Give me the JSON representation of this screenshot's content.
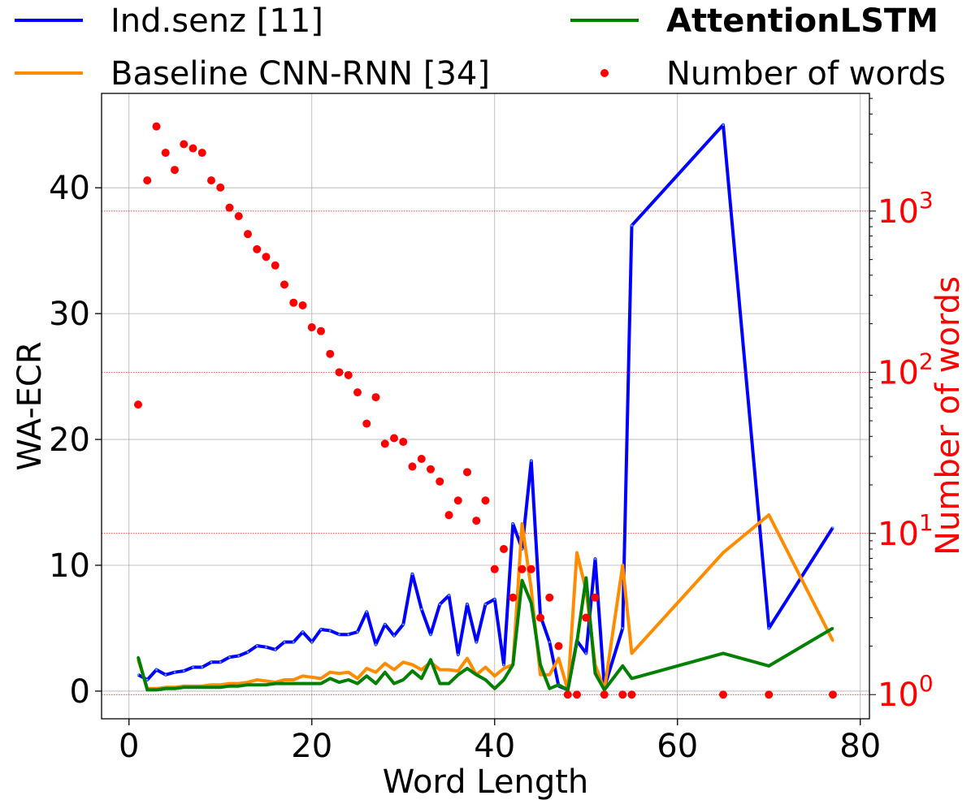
{
  "chart_data": {
    "type": "line",
    "xlabel": "Word Length",
    "ylabel": "WA-ECR",
    "y2label": "Number of words",
    "xlim": [
      -3,
      81
    ],
    "ylim": [
      -2.2,
      47.5
    ],
    "y2lim_log10": [
      -0.15,
      3.73
    ],
    "y2scale": "log",
    "grid": true,
    "legend_position": "top, above plot",
    "x_ticks": [
      0,
      20,
      40,
      60,
      80
    ],
    "y_ticks": [
      0,
      10,
      20,
      30,
      40
    ],
    "y2_ticks": [
      {
        "base": "10",
        "exp": "0",
        "value": 1
      },
      {
        "base": "10",
        "exp": "1",
        "value": 10
      },
      {
        "base": "10",
        "exp": "2",
        "value": 100
      },
      {
        "base": "10",
        "exp": "3",
        "value": 1000
      }
    ],
    "legend": [
      {
        "label": "Ind.senz [11]",
        "color": "#0000ff",
        "kind": "line",
        "bold": false
      },
      {
        "label": "Baseline CNN-RNN [34]",
        "color": "#ff8c00",
        "kind": "line",
        "bold": false
      },
      {
        "label": "AttentionLSTM",
        "color": "#008000",
        "kind": "line",
        "bold": true
      },
      {
        "label": "Number of words",
        "color": "#ff0000",
        "kind": "marker",
        "bold": false
      }
    ],
    "series": [
      {
        "name": "Ind.senz [11]",
        "color": "#0000ff",
        "axis": "left",
        "points": [
          [
            1,
            1.3
          ],
          [
            2,
            0.9
          ],
          [
            3,
            1.7
          ],
          [
            4,
            1.3
          ],
          [
            5,
            1.5
          ],
          [
            6,
            1.6
          ],
          [
            7,
            1.9
          ],
          [
            8,
            1.9
          ],
          [
            9,
            2.3
          ],
          [
            10,
            2.3
          ],
          [
            11,
            2.7
          ],
          [
            12,
            2.8
          ],
          [
            13,
            3.1
          ],
          [
            14,
            3.6
          ],
          [
            15,
            3.5
          ],
          [
            16,
            3.3
          ],
          [
            17,
            3.9
          ],
          [
            18,
            3.9
          ],
          [
            19,
            4.7
          ],
          [
            20,
            3.9
          ],
          [
            21,
            4.9
          ],
          [
            22,
            4.8
          ],
          [
            23,
            4.5
          ],
          [
            24,
            4.5
          ],
          [
            25,
            4.7
          ],
          [
            26,
            6.3
          ],
          [
            27,
            3.7
          ],
          [
            28,
            5.3
          ],
          [
            29,
            4.4
          ],
          [
            30,
            5.3
          ],
          [
            31,
            9.3
          ],
          [
            32,
            6.5
          ],
          [
            33,
            4.5
          ],
          [
            34,
            6.9
          ],
          [
            35,
            7.6
          ],
          [
            36,
            2.9
          ],
          [
            37,
            6.9
          ],
          [
            38,
            3.9
          ],
          [
            39,
            6.9
          ],
          [
            40,
            7.3
          ],
          [
            41,
            2.1
          ],
          [
            42,
            13.3
          ],
          [
            43,
            11.3
          ],
          [
            44,
            18.3
          ],
          [
            45,
            6.0
          ],
          [
            46,
            3.9
          ],
          [
            47,
            0.4
          ],
          [
            48,
            0.1
          ],
          [
            49,
            4.0
          ],
          [
            50,
            3.0
          ],
          [
            51,
            10.5
          ],
          [
            52,
            0.3
          ],
          [
            54,
            5.0
          ],
          [
            55,
            37.0
          ],
          [
            65,
            45.0
          ],
          [
            70,
            5.0
          ],
          [
            77,
            13.0
          ]
        ]
      },
      {
        "name": "Baseline CNN-RNN [34]",
        "color": "#ff8c00",
        "axis": "left",
        "points": [
          [
            1,
            2.5
          ],
          [
            2,
            0.2
          ],
          [
            3,
            0.2
          ],
          [
            4,
            0.3
          ],
          [
            5,
            0.3
          ],
          [
            6,
            0.4
          ],
          [
            7,
            0.4
          ],
          [
            8,
            0.4
          ],
          [
            9,
            0.5
          ],
          [
            10,
            0.5
          ],
          [
            11,
            0.6
          ],
          [
            12,
            0.6
          ],
          [
            13,
            0.7
          ],
          [
            14,
            0.9
          ],
          [
            15,
            0.8
          ],
          [
            16,
            0.7
          ],
          [
            17,
            0.9
          ],
          [
            18,
            0.9
          ],
          [
            19,
            1.2
          ],
          [
            20,
            1.1
          ],
          [
            21,
            1.0
          ],
          [
            22,
            1.5
          ],
          [
            23,
            1.4
          ],
          [
            24,
            1.5
          ],
          [
            25,
            1.0
          ],
          [
            26,
            1.8
          ],
          [
            27,
            1.5
          ],
          [
            28,
            2.2
          ],
          [
            29,
            1.7
          ],
          [
            30,
            2.3
          ],
          [
            31,
            2.1
          ],
          [
            32,
            1.7
          ],
          [
            33,
            2.3
          ],
          [
            34,
            1.7
          ],
          [
            35,
            1.7
          ],
          [
            36,
            1.6
          ],
          [
            37,
            2.6
          ],
          [
            38,
            1.3
          ],
          [
            39,
            1.9
          ],
          [
            40,
            1.2
          ],
          [
            41,
            1.8
          ],
          [
            42,
            2.1
          ],
          [
            43,
            13.3
          ],
          [
            44,
            8.1
          ],
          [
            45,
            1.3
          ],
          [
            46,
            1.3
          ],
          [
            47,
            2.6
          ],
          [
            48,
            0.1
          ],
          [
            49,
            11.0
          ],
          [
            50,
            8.0
          ],
          [
            51,
            2.1
          ],
          [
            52,
            0.1
          ],
          [
            54,
            10.0
          ],
          [
            55,
            3.0
          ],
          [
            65,
            11.0
          ],
          [
            70,
            14.0
          ],
          [
            77,
            4.0
          ]
        ]
      },
      {
        "name": "AttentionLSTM",
        "color": "#008000",
        "axis": "left",
        "points": [
          [
            1,
            2.7
          ],
          [
            2,
            0.1
          ],
          [
            3,
            0.1
          ],
          [
            4,
            0.2
          ],
          [
            5,
            0.2
          ],
          [
            6,
            0.3
          ],
          [
            7,
            0.3
          ],
          [
            8,
            0.3
          ],
          [
            9,
            0.3
          ],
          [
            10,
            0.3
          ],
          [
            11,
            0.4
          ],
          [
            12,
            0.4
          ],
          [
            13,
            0.5
          ],
          [
            14,
            0.5
          ],
          [
            15,
            0.5
          ],
          [
            16,
            0.6
          ],
          [
            17,
            0.6
          ],
          [
            18,
            0.6
          ],
          [
            19,
            0.6
          ],
          [
            20,
            0.6
          ],
          [
            21,
            0.6
          ],
          [
            22,
            1.0
          ],
          [
            23,
            0.7
          ],
          [
            24,
            0.9
          ],
          [
            25,
            0.6
          ],
          [
            26,
            1.2
          ],
          [
            27,
            0.6
          ],
          [
            28,
            1.5
          ],
          [
            29,
            0.6
          ],
          [
            30,
            0.9
          ],
          [
            31,
            1.6
          ],
          [
            32,
            1.0
          ],
          [
            33,
            2.5
          ],
          [
            34,
            0.6
          ],
          [
            35,
            0.6
          ],
          [
            36,
            1.3
          ],
          [
            37,
            1.8
          ],
          [
            38,
            1.3
          ],
          [
            39,
            0.9
          ],
          [
            40,
            0.2
          ],
          [
            41,
            0.9
          ],
          [
            42,
            2.1
          ],
          [
            43,
            8.8
          ],
          [
            44,
            7.0
          ],
          [
            45,
            2.1
          ],
          [
            46,
            0.2
          ],
          [
            47,
            0.5
          ],
          [
            48,
            0.1
          ],
          [
            49,
            3.9
          ],
          [
            50,
            9.0
          ],
          [
            51,
            1.4
          ],
          [
            52,
            0.1
          ],
          [
            54,
            2.0
          ],
          [
            55,
            1.0
          ],
          [
            65,
            3.0
          ],
          [
            70,
            2.0
          ],
          [
            77,
            5.0
          ]
        ]
      },
      {
        "name": "Number of words",
        "color": "#ff0000",
        "axis": "right",
        "kind": "scatter",
        "points": [
          [
            1,
            63
          ],
          [
            2,
            1550
          ],
          [
            3,
            3350
          ],
          [
            4,
            2300
          ],
          [
            5,
            1800
          ],
          [
            6,
            2600
          ],
          [
            7,
            2450
          ],
          [
            8,
            2300
          ],
          [
            9,
            1550
          ],
          [
            10,
            1400
          ],
          [
            11,
            1050
          ],
          [
            12,
            930
          ],
          [
            13,
            720
          ],
          [
            14,
            580
          ],
          [
            15,
            520
          ],
          [
            16,
            460
          ],
          [
            17,
            350
          ],
          [
            18,
            270
          ],
          [
            19,
            260
          ],
          [
            20,
            190
          ],
          [
            21,
            180
          ],
          [
            22,
            130
          ],
          [
            23,
            100
          ],
          [
            24,
            96
          ],
          [
            25,
            75
          ],
          [
            26,
            48
          ],
          [
            27,
            70
          ],
          [
            28,
            36
          ],
          [
            29,
            39
          ],
          [
            30,
            37
          ],
          [
            31,
            26
          ],
          [
            32,
            29
          ],
          [
            33,
            25
          ],
          [
            34,
            21
          ],
          [
            35,
            13
          ],
          [
            36,
            16
          ],
          [
            37,
            24
          ],
          [
            38,
            12
          ],
          [
            39,
            16
          ],
          [
            40,
            6
          ],
          [
            41,
            8
          ],
          [
            42,
            4
          ],
          [
            43,
            6
          ],
          [
            44,
            6
          ],
          [
            45,
            3
          ],
          [
            46,
            4
          ],
          [
            47,
            2
          ],
          [
            48,
            1
          ],
          [
            49,
            1
          ],
          [
            50,
            3
          ],
          [
            51,
            4
          ],
          [
            52,
            1
          ],
          [
            54,
            1
          ],
          [
            55,
            1
          ],
          [
            65,
            1
          ],
          [
            70,
            1
          ],
          [
            77,
            1
          ]
        ]
      }
    ]
  }
}
